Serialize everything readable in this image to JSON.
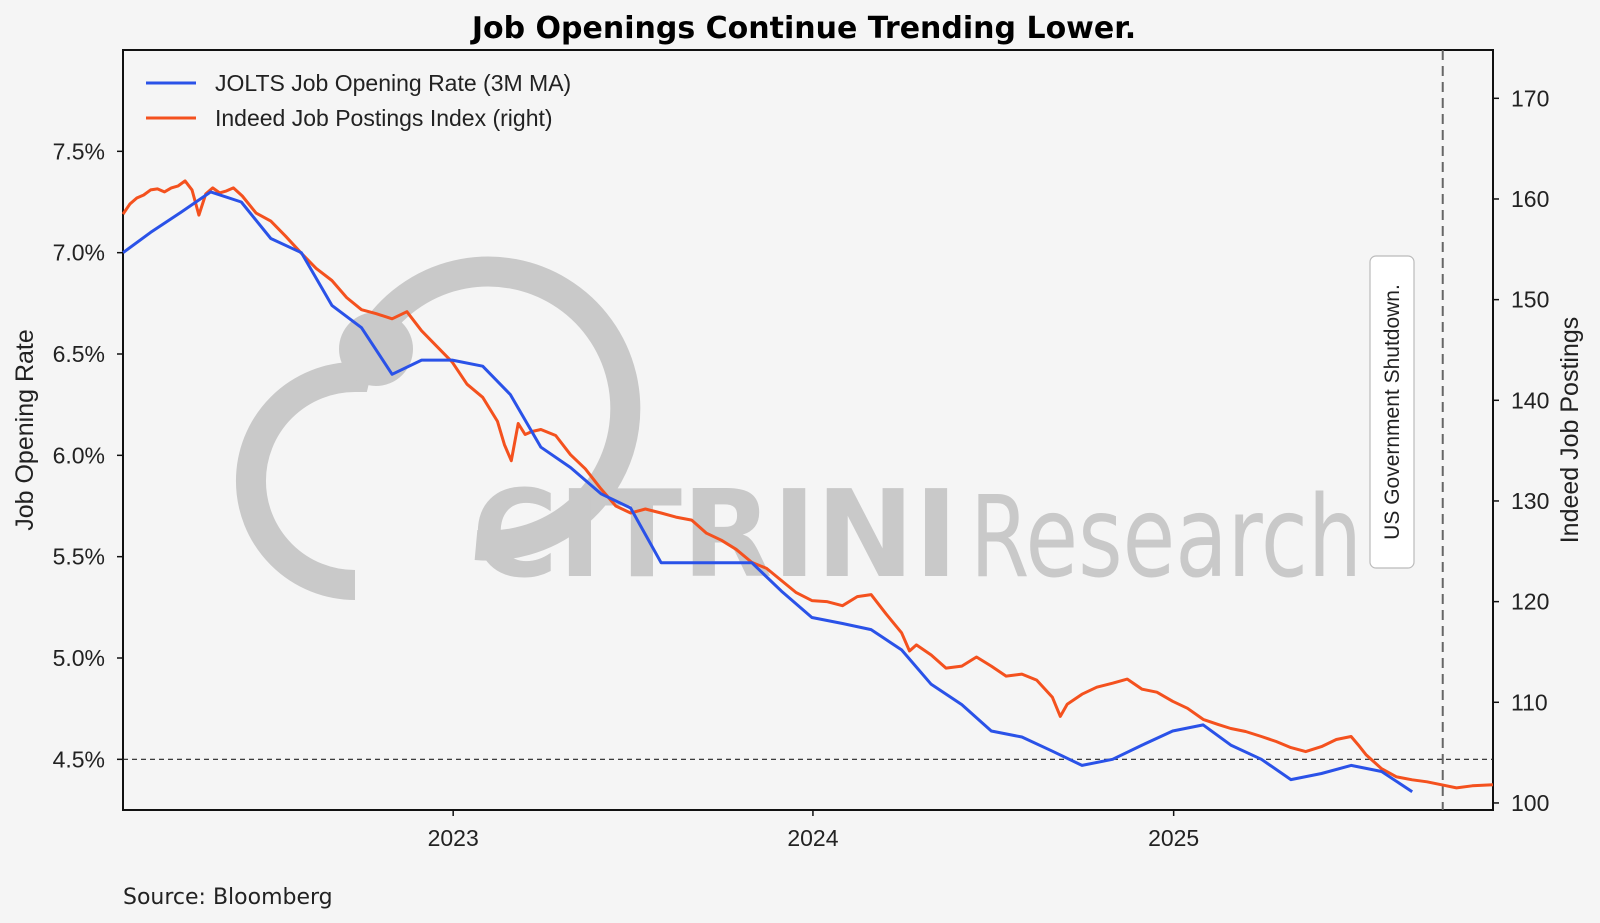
{
  "colors": {
    "jolts": "#2a52e8",
    "indeed": "#f4511e",
    "watermark": "#c9c9c9",
    "background": "#f5f5f5"
  },
  "watermark": {
    "bold": "CITRINI",
    "thin": "Research"
  },
  "footer": {
    "source": "Source: Bloomberg"
  },
  "chart_data": {
    "type": "line",
    "title": "Job Openings Continue Trending Lower.",
    "xlabel": "",
    "ylabel": "Job Opening Rate",
    "ylabel_right": "Indeed Job Postings",
    "x_range": [
      "2022-01-31",
      "2025-11-21"
    ],
    "x_ticks": [
      {
        "date": "2023-01-01",
        "label": "2023"
      },
      {
        "date": "2024-01-01",
        "label": "2024"
      },
      {
        "date": "2025-01-01",
        "label": "2025"
      }
    ],
    "ylim": [
      4.25,
      8.0
    ],
    "y_ticks": [
      {
        "value": 4.5,
        "label": "4.5%"
      },
      {
        "value": 5.0,
        "label": "5.0%"
      },
      {
        "value": 5.5,
        "label": "5.5%"
      },
      {
        "value": 6.0,
        "label": "6.0%"
      },
      {
        "value": 6.5,
        "label": "6.5%"
      },
      {
        "value": 7.0,
        "label": "7.0%"
      },
      {
        "value": 7.5,
        "label": "7.5%"
      }
    ],
    "ylim_right": [
      99.3,
      174.8
    ],
    "y_ticks_right": [
      {
        "value": 100,
        "label": "100"
      },
      {
        "value": 110,
        "label": "110"
      },
      {
        "value": 120,
        "label": "120"
      },
      {
        "value": 130,
        "label": "130"
      },
      {
        "value": 140,
        "label": "140"
      },
      {
        "value": 150,
        "label": "150"
      },
      {
        "value": 160,
        "label": "160"
      },
      {
        "value": 170,
        "label": "170"
      }
    ],
    "grid": false,
    "legend_position": "top-left",
    "reference_line": {
      "axis": "left",
      "value": 4.5,
      "style": "dashed"
    },
    "event": {
      "date": "2025-10-01",
      "label": "US Government Shutdown."
    },
    "series": [
      {
        "name": "JOLTS Job Opening Rate (3M MA)",
        "axis": "left",
        "points": [
          [
            "2022-01-31",
            7.0
          ],
          [
            "2022-02-28",
            7.1
          ],
          [
            "2022-03-31",
            7.2
          ],
          [
            "2022-04-30",
            7.3
          ],
          [
            "2022-05-31",
            7.25
          ],
          [
            "2022-06-30",
            7.07
          ],
          [
            "2022-07-31",
            7.0
          ],
          [
            "2022-08-31",
            6.74
          ],
          [
            "2022-09-30",
            6.63
          ],
          [
            "2022-10-31",
            6.4
          ],
          [
            "2022-11-30",
            6.47
          ],
          [
            "2022-12-31",
            6.47
          ],
          [
            "2023-01-31",
            6.44
          ],
          [
            "2023-02-28",
            6.3
          ],
          [
            "2023-03-31",
            6.04
          ],
          [
            "2023-04-30",
            5.94
          ],
          [
            "2023-05-31",
            5.81
          ],
          [
            "2023-06-30",
            5.74
          ],
          [
            "2023-07-31",
            5.47
          ],
          [
            "2023-08-31",
            5.47
          ],
          [
            "2023-09-30",
            5.47
          ],
          [
            "2023-10-31",
            5.47
          ],
          [
            "2023-11-30",
            5.33
          ],
          [
            "2023-12-31",
            5.2
          ],
          [
            "2024-01-31",
            5.17
          ],
          [
            "2024-02-29",
            5.14
          ],
          [
            "2024-03-31",
            5.04
          ],
          [
            "2024-04-30",
            4.87
          ],
          [
            "2024-05-31",
            4.77
          ],
          [
            "2024-06-30",
            4.64
          ],
          [
            "2024-07-31",
            4.61
          ],
          [
            "2024-08-31",
            4.54
          ],
          [
            "2024-09-30",
            4.47
          ],
          [
            "2024-10-31",
            4.5
          ],
          [
            "2024-11-30",
            4.57
          ],
          [
            "2024-12-31",
            4.64
          ],
          [
            "2025-01-31",
            4.67
          ],
          [
            "2025-02-28",
            4.57
          ],
          [
            "2025-03-31",
            4.5
          ],
          [
            "2025-04-30",
            4.4
          ],
          [
            "2025-05-31",
            4.43
          ],
          [
            "2025-06-30",
            4.47
          ],
          [
            "2025-07-31",
            4.44
          ],
          [
            "2025-08-31",
            4.34
          ]
        ]
      },
      {
        "name": "Indeed Job Postings Index (right)",
        "axis": "right",
        "points": [
          [
            "2022-01-31",
            158.5
          ],
          [
            "2022-02-07",
            159.5
          ],
          [
            "2022-02-14",
            160.1
          ],
          [
            "2022-02-21",
            160.4
          ],
          [
            "2022-02-28",
            160.9
          ],
          [
            "2022-03-07",
            161.0
          ],
          [
            "2022-03-14",
            160.7
          ],
          [
            "2022-03-21",
            161.1
          ],
          [
            "2022-03-28",
            161.3
          ],
          [
            "2022-04-04",
            161.8
          ],
          [
            "2022-04-11",
            160.9
          ],
          [
            "2022-04-18",
            158.4
          ],
          [
            "2022-04-25",
            160.5
          ],
          [
            "2022-05-02",
            161.1
          ],
          [
            "2022-05-09",
            160.6
          ],
          [
            "2022-05-16",
            160.8
          ],
          [
            "2022-05-23",
            161.1
          ],
          [
            "2022-06-01",
            160.3
          ],
          [
            "2022-06-15",
            158.6
          ],
          [
            "2022-06-30",
            157.8
          ],
          [
            "2022-07-15",
            156.3
          ],
          [
            "2022-07-31",
            154.6
          ],
          [
            "2022-08-15",
            153.1
          ],
          [
            "2022-08-31",
            151.9
          ],
          [
            "2022-09-15",
            150.2
          ],
          [
            "2022-09-30",
            149.0
          ],
          [
            "2022-10-15",
            148.6
          ],
          [
            "2022-10-31",
            148.1
          ],
          [
            "2022-11-15",
            148.8
          ],
          [
            "2022-11-30",
            146.9
          ],
          [
            "2022-12-15",
            145.4
          ],
          [
            "2022-12-31",
            143.8
          ],
          [
            "2023-01-15",
            141.6
          ],
          [
            "2023-01-31",
            140.3
          ],
          [
            "2023-02-15",
            137.9
          ],
          [
            "2023-02-22",
            135.6
          ],
          [
            "2023-03-01",
            134.0
          ],
          [
            "2023-03-08",
            137.7
          ],
          [
            "2023-03-15",
            136.6
          ],
          [
            "2023-03-22",
            136.9
          ],
          [
            "2023-03-31",
            137.1
          ],
          [
            "2023-04-15",
            136.5
          ],
          [
            "2023-04-30",
            134.6
          ],
          [
            "2023-05-15",
            133.2
          ],
          [
            "2023-05-31",
            131.2
          ],
          [
            "2023-06-15",
            129.5
          ],
          [
            "2023-06-30",
            128.8
          ],
          [
            "2023-07-15",
            129.2
          ],
          [
            "2023-07-31",
            128.8
          ],
          [
            "2023-08-15",
            128.4
          ],
          [
            "2023-08-31",
            128.1
          ],
          [
            "2023-09-15",
            126.8
          ],
          [
            "2023-09-30",
            126.1
          ],
          [
            "2023-10-15",
            125.2
          ],
          [
            "2023-10-31",
            123.9
          ],
          [
            "2023-11-15",
            123.3
          ],
          [
            "2023-11-30",
            122.1
          ],
          [
            "2023-12-15",
            120.9
          ],
          [
            "2023-12-31",
            120.1
          ],
          [
            "2024-01-15",
            120.0
          ],
          [
            "2024-01-31",
            119.6
          ],
          [
            "2024-02-15",
            120.5
          ],
          [
            "2024-02-29",
            120.7
          ],
          [
            "2024-03-15",
            118.8
          ],
          [
            "2024-03-31",
            116.9
          ],
          [
            "2024-04-08",
            115.1
          ],
          [
            "2024-04-15",
            115.7
          ],
          [
            "2024-04-30",
            114.7
          ],
          [
            "2024-05-15",
            113.4
          ],
          [
            "2024-05-31",
            113.6
          ],
          [
            "2024-06-15",
            114.5
          ],
          [
            "2024-06-30",
            113.6
          ],
          [
            "2024-07-15",
            112.6
          ],
          [
            "2024-07-31",
            112.8
          ],
          [
            "2024-08-15",
            112.2
          ],
          [
            "2024-08-31",
            110.5
          ],
          [
            "2024-09-08",
            108.6
          ],
          [
            "2024-09-15",
            109.8
          ],
          [
            "2024-09-30",
            110.8
          ],
          [
            "2024-10-15",
            111.5
          ],
          [
            "2024-10-31",
            111.9
          ],
          [
            "2024-11-15",
            112.3
          ],
          [
            "2024-11-30",
            111.3
          ],
          [
            "2024-12-15",
            111.0
          ],
          [
            "2024-12-31",
            110.1
          ],
          [
            "2025-01-15",
            109.4
          ],
          [
            "2025-01-31",
            108.3
          ],
          [
            "2025-02-15",
            107.8
          ],
          [
            "2025-02-28",
            107.4
          ],
          [
            "2025-03-15",
            107.1
          ],
          [
            "2025-03-31",
            106.6
          ],
          [
            "2025-04-15",
            106.1
          ],
          [
            "2025-04-30",
            105.5
          ],
          [
            "2025-05-15",
            105.1
          ],
          [
            "2025-05-31",
            105.6
          ],
          [
            "2025-06-15",
            106.3
          ],
          [
            "2025-06-30",
            106.6
          ],
          [
            "2025-07-07",
            105.8
          ],
          [
            "2025-07-15",
            104.8
          ],
          [
            "2025-07-31",
            103.4
          ],
          [
            "2025-08-15",
            102.6
          ],
          [
            "2025-08-31",
            102.3
          ],
          [
            "2025-09-15",
            102.1
          ],
          [
            "2025-09-30",
            101.8
          ],
          [
            "2025-10-15",
            101.5
          ],
          [
            "2025-10-31",
            101.7
          ],
          [
            "2025-11-21",
            101.8
          ]
        ]
      }
    ]
  }
}
